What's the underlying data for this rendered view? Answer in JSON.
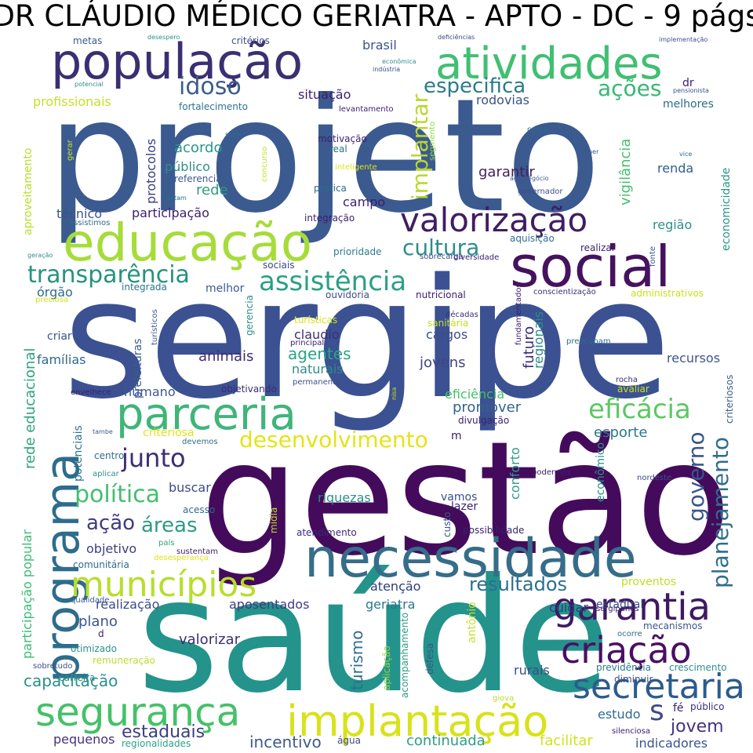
{
  "title": "DR CLÁUDIO MÉDICO GERIATRA - APTO - DC - 9 págs",
  "words": [
    {
      "text": "projeto",
      "color": "#3b5a8f"
    },
    {
      "text": "sergipe",
      "color": "#3b5191"
    },
    {
      "text": "gestão",
      "color": "#440b5c"
    },
    {
      "text": "saúde",
      "color": "#23938b"
    },
    {
      "text": "população",
      "color": "#3b2f73"
    },
    {
      "text": "atividades",
      "color": "#40bf72"
    },
    {
      "text": "educação",
      "color": "#a6dc3a"
    },
    {
      "text": "social",
      "color": "#45125e"
    },
    {
      "text": "necessidade",
      "color": "#356d8a"
    },
    {
      "text": "parceria",
      "color": "#3fb57a"
    },
    {
      "text": "programa",
      "color": "#2d6c8d"
    },
    {
      "text": "valorização",
      "color": "#3f1d63"
    },
    {
      "text": "implantação",
      "color": "#d8e21a"
    },
    {
      "text": "segurança",
      "color": "#45c168"
    },
    {
      "text": "garantia",
      "color": "#3e1a62"
    },
    {
      "text": "secretaria",
      "color": "#2c5b8e"
    },
    {
      "text": "criação",
      "color": "#4a0f63"
    },
    {
      "text": "municípios",
      "color": "#b7de2b"
    },
    {
      "text": "assistência",
      "color": "#2aa084"
    },
    {
      "text": "transparência",
      "color": "#26937e"
    },
    {
      "text": "eficácia",
      "color": "#5cc862"
    },
    {
      "text": "desenvolvimento",
      "color": "#e4e418"
    },
    {
      "text": "junto",
      "color": "#3d2e72"
    },
    {
      "text": "política",
      "color": "#43bf70"
    },
    {
      "text": "governo",
      "color": "#39568c"
    },
    {
      "text": "planejamento",
      "color": "#2f6d8c"
    },
    {
      "text": "implantar",
      "color": "#b8d82d"
    },
    {
      "text": "cultura",
      "color": "#2d8d8a"
    },
    {
      "text": "especifica",
      "color": "#2b7a8d"
    },
    {
      "text": "ações",
      "color": "#37b774"
    },
    {
      "text": "idoso",
      "color": "#3b5e8c"
    },
    {
      "text": "resultados",
      "color": "#2a6f8e"
    },
    {
      "text": "ação",
      "color": "#3f3b83"
    },
    {
      "text": "áreas",
      "color": "#2c9b84"
    },
    {
      "text": "capacitação",
      "color": "#2b8f8b"
    },
    {
      "text": "estaduais",
      "color": "#3c3f83"
    },
    {
      "text": "jovem",
      "color": "#46317e"
    },
    {
      "text": "s",
      "color": "#3e4a89"
    },
    {
      "text": "incentivo",
      "color": "#3f5a8d"
    },
    {
      "text": "continuada",
      "color": "#2da080"
    },
    {
      "text": "facilitar",
      "color": "#d1e21d"
    },
    {
      "text": "indicadores",
      "color": "#3a548c"
    },
    {
      "text": "pequenos",
      "color": "#45307d"
    },
    {
      "text": "rurais",
      "color": "#3e4c89"
    },
    {
      "text": "estudo",
      "color": "#2f6b8e"
    },
    {
      "text": "previdência",
      "color": "#2a7a8e"
    },
    {
      "text": "crescimento",
      "color": "#2e8f8a"
    },
    {
      "text": "turismo",
      "color": "#2e6d8d"
    },
    {
      "text": "atenção",
      "color": "#2e3d80"
    },
    {
      "text": "geriatra",
      "color": "#2a768d"
    },
    {
      "text": "aposentados",
      "color": "#3f3b83"
    },
    {
      "text": "realização",
      "color": "#3c4a88"
    },
    {
      "text": "plano",
      "color": "#3c5490"
    },
    {
      "text": "valorizar",
      "color": "#3a2f74"
    },
    {
      "text": "proventos",
      "color": "#c0df25"
    },
    {
      "text": "estadual",
      "color": "#3c4f89"
    },
    {
      "text": "mecanismos",
      "color": "#39568c"
    },
    {
      "text": "sergipanos",
      "color": "#3b1f6d"
    },
    {
      "text": "cuidar",
      "color": "#2e3f82"
    },
    {
      "text": "riquezas",
      "color": "#2c8e89"
    },
    {
      "text": "vamos",
      "color": "#3b4f89"
    },
    {
      "text": "lazer",
      "color": "#3b1f6d"
    },
    {
      "text": "buscar",
      "color": "#3b4c88"
    },
    {
      "text": "criteriosa",
      "color": "#e0e31a"
    },
    {
      "text": "esporte",
      "color": "#2a798d"
    },
    {
      "text": "promover",
      "color": "#33628c"
    },
    {
      "text": "eficiência",
      "color": "#45c06c"
    },
    {
      "text": "agentes",
      "color": "#27a584"
    },
    {
      "text": "naturais",
      "color": "#2e8d8a"
    },
    {
      "text": "animais",
      "color": "#3f2d76"
    },
    {
      "text": "jovens",
      "color": "#3f4587"
    },
    {
      "text": "futuro",
      "color": "#3b2b77"
    },
    {
      "text": "regionais",
      "color": "#2b8a8a"
    },
    {
      "text": "cargos",
      "color": "#3c4e89"
    },
    {
      "text": "recursos",
      "color": "#3c5689"
    },
    {
      "text": "claudio",
      "color": "#3f2d76"
    },
    {
      "text": "humano",
      "color": "#3f5690"
    },
    {
      "text": "objetivo",
      "color": "#3b3f83"
    },
    {
      "text": "famílias",
      "color": "#2f6b8c"
    },
    {
      "text": "criar",
      "color": "#3a568c"
    },
    {
      "text": "órgão",
      "color": "#2d6b8e"
    },
    {
      "text": "melhor",
      "color": "#3a5a8d"
    },
    {
      "text": "participação",
      "color": "#3d1e6d"
    },
    {
      "text": "campo",
      "color": "#3c1f6e"
    },
    {
      "text": "pratica",
      "color": "#2e6c8e"
    },
    {
      "text": "integração",
      "color": "#3b1e6d"
    },
    {
      "text": "técnico",
      "color": "#39568c"
    },
    {
      "text": "garantir",
      "color": "#442060"
    },
    {
      "text": "público",
      "color": "#2f8e8b"
    },
    {
      "text": "acordo",
      "color": "#28988a"
    },
    {
      "text": "protocolos",
      "color": "#3c3c83"
    },
    {
      "text": "rede",
      "color": "#2e9a80"
    },
    {
      "text": "referencia",
      "color": "#3c5a8d"
    },
    {
      "text": "renda",
      "color": "#2e5e8d"
    },
    {
      "text": "região",
      "color": "#2d8f88"
    },
    {
      "text": "melhores",
      "color": "#2b6c8c"
    },
    {
      "text": "rodovias",
      "color": "#3d5289"
    },
    {
      "text": "situação",
      "color": "#3c1f6e"
    },
    {
      "text": "levantamento",
      "color": "#3c1f6e"
    },
    {
      "text": "fortalecimento",
      "color": "#2b748e"
    },
    {
      "text": "profissionais",
      "color": "#c7e02a"
    },
    {
      "text": "brasil",
      "color": "#3c548b"
    },
    {
      "text": "metas",
      "color": "#3b5a8d"
    },
    {
      "text": "critérios",
      "color": "#3c4e8a"
    },
    {
      "text": "motivação",
      "color": "#3b2170"
    },
    {
      "text": "real",
      "color": "#2d6f8e"
    },
    {
      "text": "vigilância",
      "color": "#45bf6f"
    },
    {
      "text": "economicidade",
      "color": "#2a968a"
    },
    {
      "text": "aproveitamento",
      "color": "#b8de29"
    },
    {
      "text": "participação popular",
      "color": "#3cba75"
    },
    {
      "text": "rede educacional",
      "color": "#2da27f"
    },
    {
      "text": "prefeituras",
      "color": "#3b5b8d"
    },
    {
      "text": "turísticos",
      "color": "#3f5a8e"
    },
    {
      "text": "conforto",
      "color": "#2e9a88"
    },
    {
      "text": "econômico",
      "color": "#2a9285"
    },
    {
      "text": "conscientização",
      "color": "#3f2d76"
    },
    {
      "text": "administrativos",
      "color": "#cbe11e"
    },
    {
      "text": "ouvidoria",
      "color": "#3c4f8a"
    },
    {
      "text": "nutricional",
      "color": "#3b2070"
    },
    {
      "text": "sociais",
      "color": "#3c4a88"
    },
    {
      "text": "prioridade",
      "color": "#2b7b8e"
    },
    {
      "text": "aquisição",
      "color": "#2e6f8e"
    },
    {
      "text": "realizar",
      "color": "#3c1f6e"
    },
    {
      "text": "integrada",
      "color": "#2a768d"
    },
    {
      "text": "gerencia",
      "color": "#2e8d8a"
    },
    {
      "text": "antônio",
      "color": "#c7e02a"
    },
    {
      "text": "aplicação",
      "color": "#8fd744"
    },
    {
      "text": "acompanhamento",
      "color": "#2e9b84"
    },
    {
      "text": "defesa",
      "color": "#3a568c"
    },
    {
      "text": "comunitária",
      "color": "#2e6c8e"
    },
    {
      "text": "qualidade",
      "color": "#3b5a8d"
    },
    {
      "text": "otimizado",
      "color": "#2e8f8b"
    },
    {
      "text": "remuneração",
      "color": "#b8de29"
    },
    {
      "text": "sobretudo",
      "color": "#3c4f8a"
    },
    {
      "text": "carreira",
      "color": "#2e8d8a"
    },
    {
      "text": "regionalidades",
      "color": "#29a186"
    },
    {
      "text": "água",
      "color": "#3e4a89"
    },
    {
      "text": "diminuir",
      "color": "#3c4e8a"
    },
    {
      "text": "silenciosa",
      "color": "#3c2070"
    },
    {
      "text": "fé",
      "color": "#3b1e6d"
    },
    {
      "text": "público",
      "color": "#3b2b77"
    },
    {
      "text": "giova",
      "color": "#b8de29"
    },
    {
      "text": "ocorre",
      "color": "#2e6c8e"
    },
    {
      "text": "d",
      "color": "#3d1e6d"
    },
    {
      "text": "custo",
      "color": "#3c5a8d"
    },
    {
      "text": "possibilidade",
      "color": "#3b1f6d"
    },
    {
      "text": "atendimento",
      "color": "#3b2b77"
    },
    {
      "text": "acesso",
      "color": "#2e6c8e"
    },
    {
      "text": "sustentam",
      "color": "#3c2070"
    },
    {
      "text": "desesperança",
      "color": "#e0e31a"
    },
    {
      "text": "país",
      "color": "#2da27f"
    },
    {
      "text": "mídia",
      "color": "#c0df25"
    },
    {
      "text": "potenciais",
      "color": "#2b748e"
    },
    {
      "text": "centro",
      "color": "#2e6c8e"
    },
    {
      "text": "aplicar",
      "color": "#2e8f8b"
    },
    {
      "text": "devemos",
      "color": "#2e6c8e"
    },
    {
      "text": "podermos",
      "color": "#3b2070"
    },
    {
      "text": "nordeste",
      "color": "#3c4f8a"
    },
    {
      "text": "divulgação",
      "color": "#3c2070"
    },
    {
      "text": "m",
      "color": "#3b1e6d"
    },
    {
      "text": "objetivando",
      "color": "#3b2b77"
    },
    {
      "text": "permanente",
      "color": "#3c4f8a"
    },
    {
      "text": "envelhece",
      "color": "#3c2070"
    },
    {
      "text": "nisa",
      "color": "#c7e02a"
    },
    {
      "text": "avaliar",
      "color": "#cbe11e"
    },
    {
      "text": "rocha",
      "color": "#3b2b77"
    },
    {
      "text": "criteriosos",
      "color": "#3c5a8d"
    },
    {
      "text": "preocupam",
      "color": "#2e6c8e"
    },
    {
      "text": "fundamentados",
      "color": "#3b1e6d"
    },
    {
      "text": "décadas",
      "color": "#3b2b77"
    },
    {
      "text": "sanitária",
      "color": "#c0df25"
    },
    {
      "text": "turísticas",
      "color": "#d8e21a"
    },
    {
      "text": "principal",
      "color": "#3b2070"
    },
    {
      "text": "preciosa",
      "color": "#d1e21d"
    },
    {
      "text": "geração",
      "color": "#2e8d8a"
    },
    {
      "text": "sobrecarga",
      "color": "#3c4f8a"
    },
    {
      "text": "diversidade",
      "color": "#3b2070"
    },
    {
      "text": "fonte",
      "color": "#3c5a8d"
    },
    {
      "text": "assistimos",
      "color": "#2e6c8e"
    },
    {
      "text": "faltam",
      "color": "#2e6c8e"
    },
    {
      "text": "agronegócio",
      "color": "#3b5a8d"
    },
    {
      "text": "governador",
      "color": "#3c4f8a"
    },
    {
      "text": "inteligente",
      "color": "#e0e31a"
    },
    {
      "text": "concurso",
      "color": "#c7e02a"
    },
    {
      "text": "segmento",
      "color": "#8fd744"
    },
    {
      "text": "gerar",
      "color": "#c7e02a"
    },
    {
      "text": "sofre",
      "color": "#2e6c8e"
    },
    {
      "text": "cerca",
      "color": "#2e6c8e"
    },
    {
      "text": "requer",
      "color": "#3b5a8d"
    },
    {
      "text": "vice",
      "color": "#2e6c8e"
    },
    {
      "text": "dr",
      "color": "#3b2070"
    },
    {
      "text": "pensionista",
      "color": "#3c4f8a"
    },
    {
      "text": "desespero",
      "color": "#2e8f8b"
    },
    {
      "text": "deficiências",
      "color": "#3c4a88"
    },
    {
      "text": "implementação",
      "color": "#3c4f8a"
    },
    {
      "text": "econômica",
      "color": "#2e8f8b"
    },
    {
      "text": "indústria",
      "color": "#3c4f8a"
    },
    {
      "text": "potencial",
      "color": "#2e8d8a"
    },
    {
      "text": "tambe",
      "color": "#3c5a8d"
    }
  ]
}
